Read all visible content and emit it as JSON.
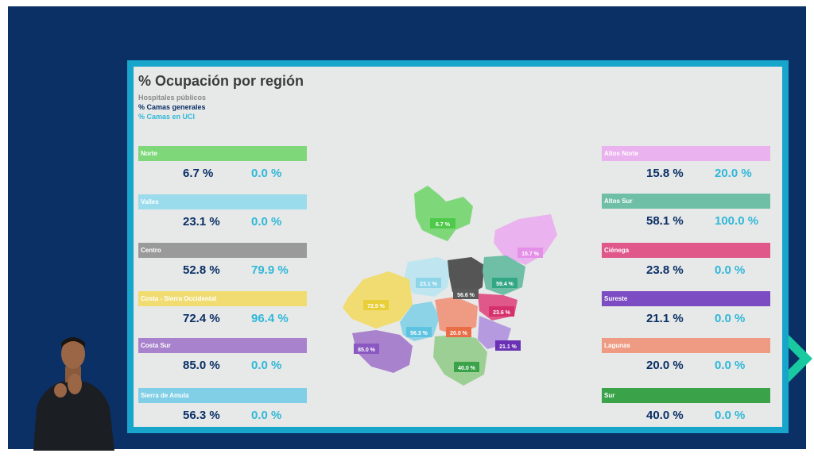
{
  "title": "% Ocupación por región",
  "legend": {
    "hospitals": "Hospitales públicos",
    "general": "% Camas generales",
    "icu": "% Camas en UCI"
  },
  "colors": {
    "general": "#0a3066",
    "icu": "#2fb8d8"
  },
  "left_regions": [
    {
      "name": "Norte",
      "color": "#7ed87a",
      "general": "6.7 %",
      "icu": "0.0 %"
    },
    {
      "name": "Valles",
      "color": "#9adcec",
      "general": "23.1 %",
      "icu": "0.0 %"
    },
    {
      "name": "Centro",
      "color": "#9a9a9a",
      "general": "52.8 %",
      "icu": "79.9 %"
    },
    {
      "name": "Costa - Sierra Occidental",
      "color": "#f0dc70",
      "general": "72.4 %",
      "icu": "96.4 %"
    },
    {
      "name": "Costa Sur",
      "color": "#a882cc",
      "general": "85.0 %",
      "icu": "0.0 %"
    },
    {
      "name": "Sierra de Amula",
      "color": "#80cfe6",
      "general": "56.3 %",
      "icu": "0.0 %"
    }
  ],
  "right_regions": [
    {
      "name": "Altos Norte",
      "color": "#eab2ee",
      "general": "15.8 %",
      "icu": "20.0 %"
    },
    {
      "name": "Altos Sur",
      "color": "#6fbfa7",
      "general": "58.1 %",
      "icu": "100.0 %"
    },
    {
      "name": "Ciénega",
      "color": "#e0588a",
      "general": "23.8 %",
      "icu": "0.0 %"
    },
    {
      "name": "Sureste",
      "color": "#7b4cc2",
      "general": "21.1 %",
      "icu": "0.0 %"
    },
    {
      "name": "Lagunas",
      "color": "#ef9a82",
      "general": "20.0 %",
      "icu": "0.0 %"
    },
    {
      "name": "Sur",
      "color": "#3aa34a",
      "general": "40.0 %",
      "icu": "0.0 %"
    }
  ],
  "map_labels": [
    {
      "text": "6.7 %",
      "color": "#4ec94a"
    },
    {
      "text": "15.7 %",
      "color": "#e590e8"
    },
    {
      "text": "23.1 %",
      "color": "#8fd5ea"
    },
    {
      "text": "56.6 %",
      "color": "#5a5a5a"
    },
    {
      "text": "59.4 %",
      "color": "#33a683"
    },
    {
      "text": "23.6 %",
      "color": "#d6306a"
    },
    {
      "text": "72.5 %",
      "color": "#e8cf3a"
    },
    {
      "text": "56.3 %",
      "color": "#5ec3e1"
    },
    {
      "text": "20.0 %",
      "color": "#e96e47"
    },
    {
      "text": "21.1 %",
      "color": "#6932b4"
    },
    {
      "text": "85.0 %",
      "color": "#8a58c0"
    },
    {
      "text": "40.0 %",
      "color": "#3aa34a"
    }
  ]
}
